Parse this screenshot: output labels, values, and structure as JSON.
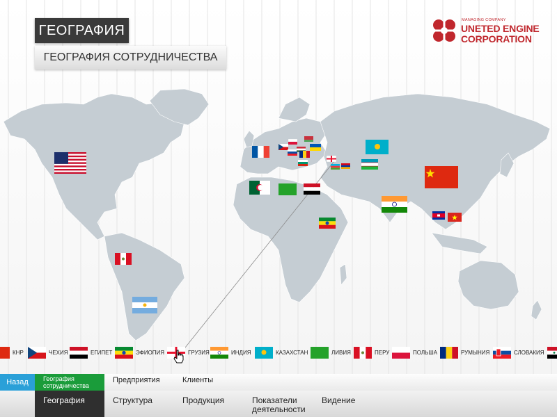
{
  "header": {
    "title": "ГЕОГРАФИЯ",
    "subtitle": "ГЕОГРАФИЯ СОТРУДНИЧЕСТВА"
  },
  "logo": {
    "managing": "MANAGING COMPANY",
    "line1": "UNETED ENGINE",
    "line2": "CORPORATION",
    "color": "#c0272d"
  },
  "colors": {
    "land": "#c5cdd3",
    "active_green": "#1a9c3a",
    "back_blue": "#2aa0d8",
    "active_dark": "#2f2f2f"
  },
  "flag_strip": [
    {
      "label": "КНР",
      "flag": "china"
    },
    {
      "label": "ЧЕХИЯ",
      "flag": "czech"
    },
    {
      "label": "ЕГИПЕТ",
      "flag": "egypt"
    },
    {
      "label": "ЭФИОПИЯ",
      "flag": "ethiopia"
    },
    {
      "label": "ГРУЗИЯ",
      "flag": "georgia"
    },
    {
      "label": "ИНДИЯ",
      "flag": "india"
    },
    {
      "label": "КАЗАХСТАН",
      "flag": "kazakhstan"
    },
    {
      "label": "ЛИВИЯ",
      "flag": "libya"
    },
    {
      "label": "ПЕРУ",
      "flag": "peru"
    },
    {
      "label": "ПОЛЬША",
      "flag": "poland"
    },
    {
      "label": "РУМЫНИЯ",
      "flag": "romania"
    },
    {
      "label": "СЛОВАКИЯ",
      "flag": "slovakia"
    }
  ],
  "nav": {
    "back": "Назад",
    "geo_sub": "География сотрудничества",
    "enterprises": "Предприятия",
    "clients": "Клиенты",
    "geography": "География",
    "structure": "Структура",
    "products": "Продукция",
    "indicators": "Показатели деятельности",
    "vision": "Видение"
  }
}
